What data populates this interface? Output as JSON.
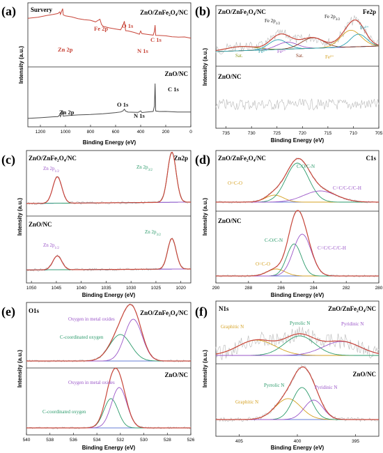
{
  "chart_data": [
    {
      "panel": "(a)",
      "type": "line",
      "xlabel": "Binding Energy (eV)",
      "ylabel": "Intensity (a.u.)",
      "xticks": [
        "1200",
        "1000",
        "800",
        "600",
        "400",
        "200",
        "0"
      ],
      "xlim": [
        1300,
        0
      ],
      "titles": {
        "left": "Survery",
        "top_sample": "ZnO/ZnFe₂O₄/NC",
        "bottom_sample": "ZnO/NC"
      },
      "series": [
        {
          "name": "ZnO/ZnFe₂O₄/NC",
          "color": "#c8463a",
          "x": [
            1300,
            1220,
            1150,
            1100,
            1060,
            1045,
            1040,
            1022,
            1018,
            1000,
            950,
            900,
            850,
            800,
            760,
            725,
            712,
            700,
            650,
            600,
            560,
            540,
            530,
            520,
            500,
            450,
            410,
            400,
            390,
            350,
            300,
            290,
            285,
            280,
            250,
            200,
            150,
            100,
            50,
            0
          ],
          "y": [
            0.82,
            0.84,
            0.86,
            0.88,
            0.9,
            0.93,
            0.88,
            0.99,
            0.88,
            0.86,
            0.84,
            0.82,
            0.8,
            0.78,
            0.76,
            0.8,
            0.72,
            0.68,
            0.66,
            0.64,
            0.62,
            0.7,
            0.78,
            0.62,
            0.6,
            0.58,
            0.56,
            0.6,
            0.56,
            0.55,
            0.54,
            0.6,
            0.7,
            0.54,
            0.53,
            0.52,
            0.51,
            0.5,
            0.5,
            0.49
          ]
        },
        {
          "name": "ZnO/NC",
          "color": "#4a4a4a",
          "x": [
            1300,
            1200,
            1100,
            1060,
            1045,
            1040,
            1022,
            1018,
            1000,
            900,
            800,
            700,
            600,
            560,
            540,
            530,
            520,
            500,
            420,
            400,
            390,
            350,
            300,
            290,
            285,
            280,
            250,
            200,
            100,
            0
          ],
          "y": [
            0.12,
            0.13,
            0.14,
            0.15,
            0.17,
            0.15,
            0.22,
            0.15,
            0.16,
            0.17,
            0.18,
            0.19,
            0.2,
            0.21,
            0.23,
            0.25,
            0.22,
            0.21,
            0.21,
            0.23,
            0.21,
            0.21,
            0.22,
            0.3,
            0.62,
            0.23,
            0.22,
            0.22,
            0.21,
            0.21
          ]
        }
      ],
      "annotations": [
        {
          "text": "Fe 2p",
          "x": 740,
          "color": "#c8463a"
        },
        {
          "text": "O 1s",
          "x": 530,
          "color": "#c8463a"
        },
        {
          "text": "C 1s",
          "x": 285,
          "color": "#c8463a"
        },
        {
          "text": "Zn 2p",
          "x": 1030,
          "color": "#c8463a"
        },
        {
          "text": "N 1s",
          "x": 400,
          "color": "#c8463a"
        },
        {
          "text": "C 1s",
          "x": 285,
          "color": "#111111"
        },
        {
          "text": "Zn 2p",
          "x": 1030,
          "color": "#111111"
        },
        {
          "text": "O 1s",
          "x": 530,
          "color": "#111111"
        },
        {
          "text": "N 1s",
          "x": 400,
          "color": "#111111"
        }
      ]
    },
    {
      "panel": "(b)",
      "type": "line",
      "xlabel": "Binding Energy (eV)",
      "ylabel": "Intensity (a.u.)",
      "xticks": [
        "735",
        "730",
        "725",
        "720",
        "715",
        "710",
        "705"
      ],
      "xlim": [
        737,
        705
      ],
      "titles": {
        "element": "Fe2p",
        "top_sample": "ZnO/ZnFe₂O₄/NC",
        "bottom_sample": "ZnO/NC"
      },
      "peaks_top": [
        {
          "label": "Fe 2p₁/₂",
          "center": 724.5,
          "color": "#111111"
        },
        {
          "label": "Fe 2p₃/₂",
          "center": 711,
          "color": "#111111"
        },
        {
          "label": "Fe³⁺",
          "center": 724.8,
          "color": "#2aa0b0"
        },
        {
          "label": "Fe²⁺",
          "center": 723,
          "color": "#9a55c8"
        },
        {
          "label": "Fe²⁺",
          "center": 710.5,
          "color": "#d4a020"
        },
        {
          "label": "Fe³⁺",
          "center": 709,
          "color": "#2aa0b0"
        },
        {
          "label": "Sat.",
          "center": 732,
          "color": "#8a9a20"
        },
        {
          "label": "Sat.",
          "center": 718,
          "color": "#8a3a20"
        }
      ]
    },
    {
      "panel": "(c)",
      "type": "line",
      "xlabel": "Binding Energy (eV)",
      "ylabel": "Intensity (a.u.)",
      "xticks": [
        "1050",
        "1045",
        "1040",
        "1035",
        "1030",
        "1025",
        "1020"
      ],
      "xlim": [
        1051,
        1018
      ],
      "titles": {
        "element": "Zn2p",
        "top_sample": "ZnO/ZnFe₂O₄/NC",
        "bottom_sample": "ZnO/NC"
      },
      "peaks": [
        {
          "label": "Zn 2p₁/₂",
          "center": 1044.8,
          "color": "#9a55c8"
        },
        {
          "label": "Zn 2p₃/₂",
          "center": 1021.8,
          "color": "#2a9a6a"
        }
      ]
    },
    {
      "panel": "(d)",
      "type": "line",
      "xlabel": "Binding Energy (eV)",
      "ylabel": "Intensity (a.u.)",
      "xticks": [
        "290",
        "288",
        "286",
        "284",
        "282",
        "280"
      ],
      "xlim": [
        290,
        280
      ],
      "titles": {
        "element": "C1s",
        "top_sample": "ZnO/ZnFe₂O₄/NC",
        "bottom_sample": "ZnO/NC"
      },
      "peaks": [
        {
          "label": "O=C-O",
          "center": 286.4,
          "color": "#d4a020"
        },
        {
          "label": "C-O/C-N",
          "center": 285.0,
          "color": "#2a9a6a"
        },
        {
          "label": "C=C/C-C/C-H",
          "center": 284.2,
          "color": "#9a55c8"
        }
      ]
    },
    {
      "panel": "(e)",
      "type": "line",
      "xlabel": "Binding Energy (eV)",
      "ylabel": "Intensity (a.u.)",
      "xticks": [
        "540",
        "538",
        "536",
        "534",
        "532",
        "530",
        "528",
        "526"
      ],
      "xlim": [
        540,
        526
      ],
      "titles": {
        "element": "O1s",
        "top_sample": "ZnO/ZnFe₂O₄/NC",
        "bottom_sample": "ZnO/NC"
      },
      "peaks": [
        {
          "label": "Oxygen in metal oxides",
          "center": 530.9,
          "color": "#9a55c8"
        },
        {
          "label": "C-coordinated oxygen",
          "center": 532.0,
          "color": "#2a9a6a"
        }
      ]
    },
    {
      "panel": "(f)",
      "type": "line",
      "xlabel": "Binding Energy (eV)",
      "ylabel": "Intensity (a.u.)",
      "xticks": [
        "405",
        "400",
        "395"
      ],
      "xlim": [
        407,
        393
      ],
      "titles": {
        "element": "N1s",
        "top_sample": "ZnO/ZnFe₂O₄/NC",
        "bottom_sample": "ZnO/NC"
      },
      "peaks": [
        {
          "label": "Graphitic N",
          "center": 400.9,
          "color": "#d4a020"
        },
        {
          "label": "Pyrrolic N",
          "center": 399.6,
          "color": "#2a9a6a"
        },
        {
          "label": "Pyridinic N",
          "center": 398.4,
          "color": "#9a55c8"
        }
      ]
    }
  ],
  "labels": {
    "a": "(a)",
    "b": "(b)",
    "c": "(c)",
    "d": "(d)",
    "e": "(e)",
    "f": "(f)",
    "survey": "Survery",
    "zfnc": "ZnO/ZnFe₂O₄/NC",
    "znc": "ZnO/NC",
    "fe2p": "Fe2p",
    "zn2p": "Zn2p",
    "c1s": "C1s",
    "o1s": "O1s",
    "n1s": "N1s",
    "be": "Binding Energy (eV)",
    "int": "Intensity (a.u.)",
    "a_fe2p": "Fe 2p",
    "a_o1s": "O 1s",
    "a_c1s": "C 1s",
    "a_zn2p": "Zn 2p",
    "a_n1s": "N 1s",
    "b_fe12": "Fe 2p",
    "b_fe32": "Fe 2p",
    "b_sub12": "1/2",
    "b_sub32": "3/2",
    "b_fe3a": "Fe³⁺",
    "b_fe2a": "Fe²⁺",
    "b_fe2b": "Fe²⁺",
    "b_fe3b": "Fe³⁺",
    "b_sat": "Sat.",
    "c_zn12": "Zn 2p",
    "c_zn32": "Zn 2p",
    "d_occo": "O=C-O",
    "d_con": "C-O/C-N",
    "d_ccch": "C=C/C-C/C-H",
    "e_omo": "Oxygen in metal oxides",
    "e_cco": "C-coordinated oxygen",
    "f_grap": "Graphitic N",
    "f_pyrr": "Pyrrolic N",
    "f_pyrd": "Pyridinic N"
  },
  "colors": {
    "red": "#c8463a",
    "gray": "#4a4a4a",
    "green": "#2a9a6a",
    "purple": "#9a55c8",
    "yellow": "#d4a020",
    "teal": "#2aa0b0",
    "brown": "#8a4030",
    "blue": "#3050c8",
    "raw": "#b8b8b8",
    "envelope": "#c8463a"
  }
}
